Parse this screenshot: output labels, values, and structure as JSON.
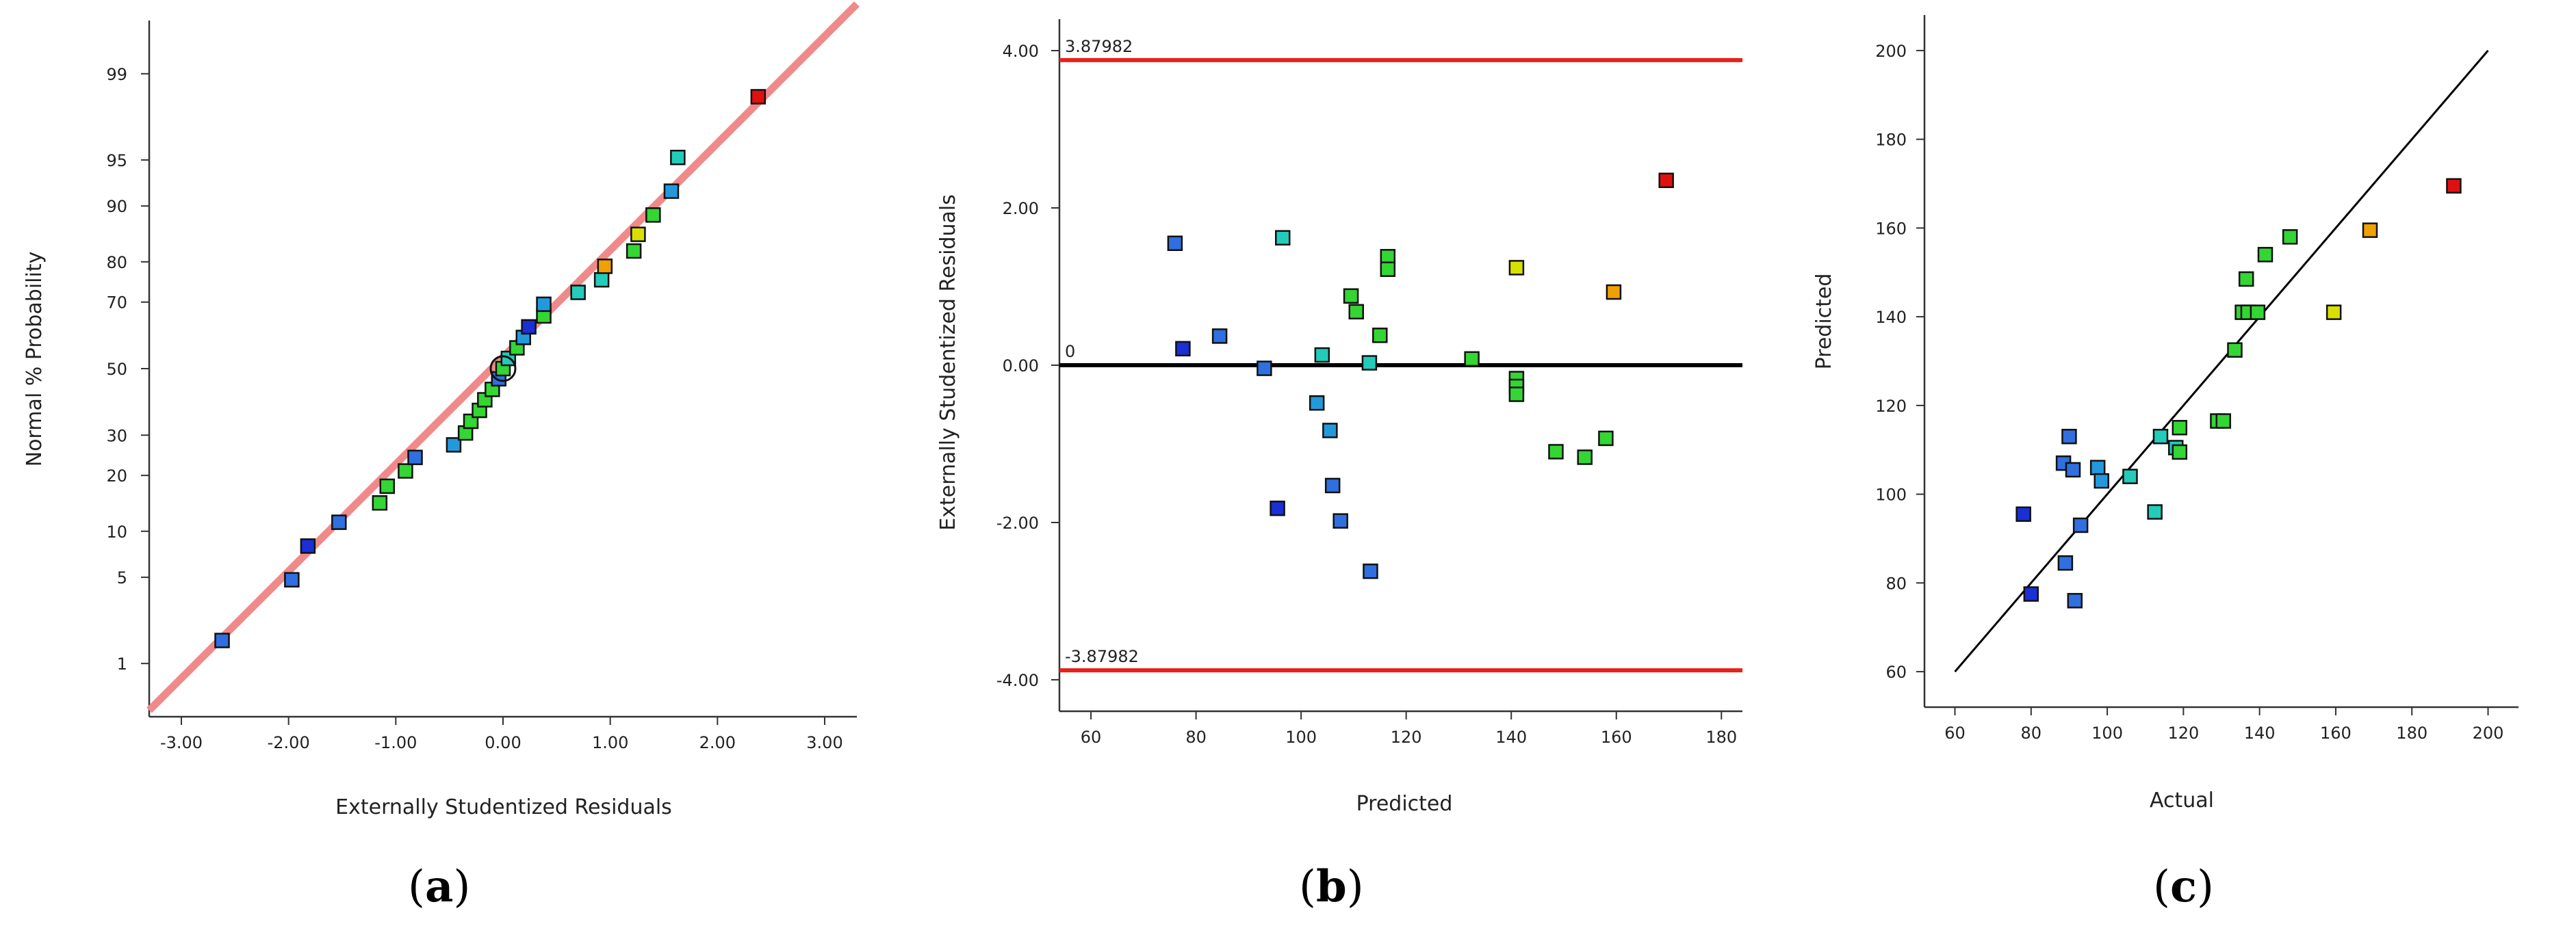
{
  "colors": {
    "axis": "#333333",
    "fitline": "#f08a8a",
    "limitline": "#e8201c",
    "zeroline": "#000000",
    "diagline": "#000000"
  },
  "chart_data": [
    {
      "id": "a",
      "type": "scatter",
      "caption": "a",
      "title": "",
      "xlabel": "Externally Studentized Residuals",
      "ylabel": "Normal % Probability",
      "xlim": [
        -3.3,
        3.3
      ],
      "x_ticks": [
        "-3.00",
        "-2.00",
        "-1.00",
        "0.00",
        "1.00",
        "2.00",
        "3.00"
      ],
      "x_tick_values": [
        -3,
        -2,
        -1,
        0,
        1,
        2,
        3
      ],
      "y_ticks": [
        "1",
        "5",
        "10",
        "20",
        "30",
        "50",
        "70",
        "80",
        "90",
        "95",
        "99"
      ],
      "y_tick_values": [
        1,
        5,
        10,
        20,
        30,
        50,
        70,
        80,
        90,
        95,
        99
      ],
      "fit_line": {
        "x": [
          -3.3,
          3.3
        ],
        "y": [
          0.35,
          99.8
        ]
      },
      "points": [
        {
          "x": -2.62,
          "y": 1.6,
          "c": "#2f6fe0"
        },
        {
          "x": -1.97,
          "y": 4.8,
          "c": "#2f6fe0"
        },
        {
          "x": -1.82,
          "y": 8.1,
          "c": "#1a2fd6"
        },
        {
          "x": -1.53,
          "y": 11.3,
          "c": "#2f6fe0"
        },
        {
          "x": -1.15,
          "y": 14.5,
          "c": "#33d633"
        },
        {
          "x": -1.08,
          "y": 17.7,
          "c": "#33d633"
        },
        {
          "x": -0.91,
          "y": 21.0,
          "c": "#33d633"
        },
        {
          "x": -0.82,
          "y": 24.2,
          "c": "#2f6fe0"
        },
        {
          "x": -0.46,
          "y": 27.4,
          "c": "#2299dd"
        },
        {
          "x": -0.35,
          "y": 30.6,
          "c": "#33d633"
        },
        {
          "x": -0.3,
          "y": 33.9,
          "c": "#33d633"
        },
        {
          "x": -0.22,
          "y": 37.1,
          "c": "#33d633"
        },
        {
          "x": -0.17,
          "y": 40.3,
          "c": "#33d633"
        },
        {
          "x": -0.1,
          "y": 43.5,
          "c": "#33d633"
        },
        {
          "x": -0.04,
          "y": 46.8,
          "c": "#2f6fe0"
        },
        {
          "x": 0.0,
          "y": 50.0,
          "c": "#33d633"
        },
        {
          "x": 0.05,
          "y": 53.2,
          "c": "#22ccbb"
        },
        {
          "x": 0.13,
          "y": 56.5,
          "c": "#33d633"
        },
        {
          "x": 0.19,
          "y": 59.7,
          "c": "#2299dd"
        },
        {
          "x": 0.24,
          "y": 62.9,
          "c": "#1a2fd6"
        },
        {
          "x": 0.38,
          "y": 66.1,
          "c": "#33d633"
        },
        {
          "x": 0.38,
          "y": 69.4,
          "c": "#2299dd"
        },
        {
          "x": 0.7,
          "y": 72.6,
          "c": "#22ccbb"
        },
        {
          "x": 0.92,
          "y": 75.8,
          "c": "#22ccbb"
        },
        {
          "x": 0.95,
          "y": 79.0,
          "c": "#f0a000"
        },
        {
          "x": 1.22,
          "y": 82.3,
          "c": "#33d633"
        },
        {
          "x": 1.26,
          "y": 85.5,
          "c": "#d8e000"
        },
        {
          "x": 1.4,
          "y": 88.7,
          "c": "#33d633"
        },
        {
          "x": 1.57,
          "y": 91.9,
          "c": "#2299dd"
        },
        {
          "x": 1.63,
          "y": 95.2,
          "c": "#22ccbb"
        },
        {
          "x": 2.38,
          "y": 98.4,
          "c": "#e01010"
        }
      ],
      "highlight": {
        "x": 0.0,
        "y": 50.0
      }
    },
    {
      "id": "b",
      "type": "scatter",
      "caption": "b",
      "title": "",
      "xlabel": "Predicted",
      "ylabel": "Externally Studentized Residuals",
      "xlim": [
        54,
        184
      ],
      "ylim": [
        -4.4,
        4.4
      ],
      "x_ticks": [
        "60",
        "80",
        "100",
        "120",
        "140",
        "160",
        "180"
      ],
      "x_tick_values": [
        60,
        80,
        100,
        120,
        140,
        160,
        180
      ],
      "y_ticks": [
        "-4.00",
        "-2.00",
        "0.00",
        "2.00",
        "4.00"
      ],
      "y_tick_values": [
        -4,
        -2,
        0,
        2,
        4
      ],
      "upper_limit": 3.87982,
      "lower_limit": -3.87982,
      "upper_label": "3.87982",
      "lower_label": "-3.87982",
      "zero_label": "0",
      "points": [
        {
          "x": 76,
          "y": 1.55,
          "c": "#2f6fe0"
        },
        {
          "x": 77.5,
          "y": 0.21,
          "c": "#1a2fd6"
        },
        {
          "x": 84.5,
          "y": 0.37,
          "c": "#2f6fe0"
        },
        {
          "x": 93,
          "y": -0.04,
          "c": "#2f6fe0"
        },
        {
          "x": 95.5,
          "y": -1.82,
          "c": "#1a2fd6"
        },
        {
          "x": 96.5,
          "y": 1.62,
          "c": "#22ccbb"
        },
        {
          "x": 103,
          "y": -0.48,
          "c": "#2299dd"
        },
        {
          "x": 104,
          "y": 0.13,
          "c": "#22ccbb"
        },
        {
          "x": 105.5,
          "y": -0.83,
          "c": "#2299dd"
        },
        {
          "x": 106,
          "y": -1.53,
          "c": "#2f6fe0"
        },
        {
          "x": 107.5,
          "y": -1.98,
          "c": "#2f6fe0"
        },
        {
          "x": 109.5,
          "y": 0.88,
          "c": "#33d633"
        },
        {
          "x": 110.5,
          "y": 0.68,
          "c": "#33d633"
        },
        {
          "x": 113,
          "y": 0.03,
          "c": "#22ccbb"
        },
        {
          "x": 113.2,
          "y": -2.62,
          "c": "#2f6fe0"
        },
        {
          "x": 115,
          "y": 0.38,
          "c": "#33d633"
        },
        {
          "x": 116.5,
          "y": 1.38,
          "c": "#33d633"
        },
        {
          "x": 116.5,
          "y": 1.22,
          "c": "#33d633"
        },
        {
          "x": 132.5,
          "y": 0.08,
          "c": "#33d633"
        },
        {
          "x": 141,
          "y": 1.24,
          "c": "#d8e000"
        },
        {
          "x": 141,
          "y": -0.17,
          "c": "#33d633"
        },
        {
          "x": 141,
          "y": -0.27,
          "c": "#33d633"
        },
        {
          "x": 141,
          "y": -0.37,
          "c": "#33d633"
        },
        {
          "x": 148.5,
          "y": -1.1,
          "c": "#33d633"
        },
        {
          "x": 154,
          "y": -1.17,
          "c": "#33d633"
        },
        {
          "x": 158,
          "y": -0.93,
          "c": "#33d633"
        },
        {
          "x": 159.5,
          "y": 0.93,
          "c": "#f0a000"
        },
        {
          "x": 169.5,
          "y": 2.35,
          "c": "#e01010"
        }
      ]
    },
    {
      "id": "c",
      "type": "scatter",
      "caption": "c",
      "title": "",
      "xlabel": "Actual",
      "ylabel": "Predicted",
      "xlim": [
        52,
        208
      ],
      "ylim": [
        52,
        208
      ],
      "x_ticks": [
        "60",
        "80",
        "100",
        "120",
        "140",
        "160",
        "180",
        "200"
      ],
      "x_tick_values": [
        60,
        80,
        100,
        120,
        140,
        160,
        180,
        200
      ],
      "y_ticks": [
        "60",
        "80",
        "100",
        "120",
        "140",
        "160",
        "180",
        "200"
      ],
      "y_tick_values": [
        60,
        80,
        100,
        120,
        140,
        160,
        180,
        200
      ],
      "diag_line": {
        "x": [
          60,
          200
        ],
        "y": [
          60,
          200
        ]
      },
      "points": [
        {
          "x": 78,
          "y": 95.5,
          "c": "#1a2fd6"
        },
        {
          "x": 80,
          "y": 77.5,
          "c": "#1a2fd6"
        },
        {
          "x": 88.5,
          "y": 107,
          "c": "#2f6fe0"
        },
        {
          "x": 89,
          "y": 84.5,
          "c": "#2f6fe0"
        },
        {
          "x": 90,
          "y": 113,
          "c": "#2f6fe0"
        },
        {
          "x": 91,
          "y": 105.5,
          "c": "#2f6fe0"
        },
        {
          "x": 91.5,
          "y": 76,
          "c": "#2f6fe0"
        },
        {
          "x": 93,
          "y": 93,
          "c": "#2f6fe0"
        },
        {
          "x": 97.5,
          "y": 106,
          "c": "#2299dd"
        },
        {
          "x": 98.5,
          "y": 103,
          "c": "#2299dd"
        },
        {
          "x": 106,
          "y": 104,
          "c": "#22ccbb"
        },
        {
          "x": 112.5,
          "y": 96,
          "c": "#22ccbb"
        },
        {
          "x": 114,
          "y": 113,
          "c": "#22ccbb"
        },
        {
          "x": 118,
          "y": 110.5,
          "c": "#22ccbb"
        },
        {
          "x": 119,
          "y": 109.5,
          "c": "#33d633"
        },
        {
          "x": 119,
          "y": 115,
          "c": "#33d633"
        },
        {
          "x": 129,
          "y": 116.5,
          "c": "#33d633"
        },
        {
          "x": 130.5,
          "y": 116.5,
          "c": "#33d633"
        },
        {
          "x": 133.5,
          "y": 132.5,
          "c": "#33d633"
        },
        {
          "x": 135.5,
          "y": 141,
          "c": "#33d633"
        },
        {
          "x": 136.5,
          "y": 148.5,
          "c": "#33d633"
        },
        {
          "x": 137,
          "y": 141,
          "c": "#33d633"
        },
        {
          "x": 139.5,
          "y": 141,
          "c": "#33d633"
        },
        {
          "x": 141.5,
          "y": 154,
          "c": "#33d633"
        },
        {
          "x": 148,
          "y": 158,
          "c": "#33d633"
        },
        {
          "x": 159.5,
          "y": 141,
          "c": "#d8e000"
        },
        {
          "x": 169,
          "y": 159.5,
          "c": "#f0a000"
        },
        {
          "x": 191,
          "y": 169.5,
          "c": "#e01010"
        }
      ]
    }
  ]
}
